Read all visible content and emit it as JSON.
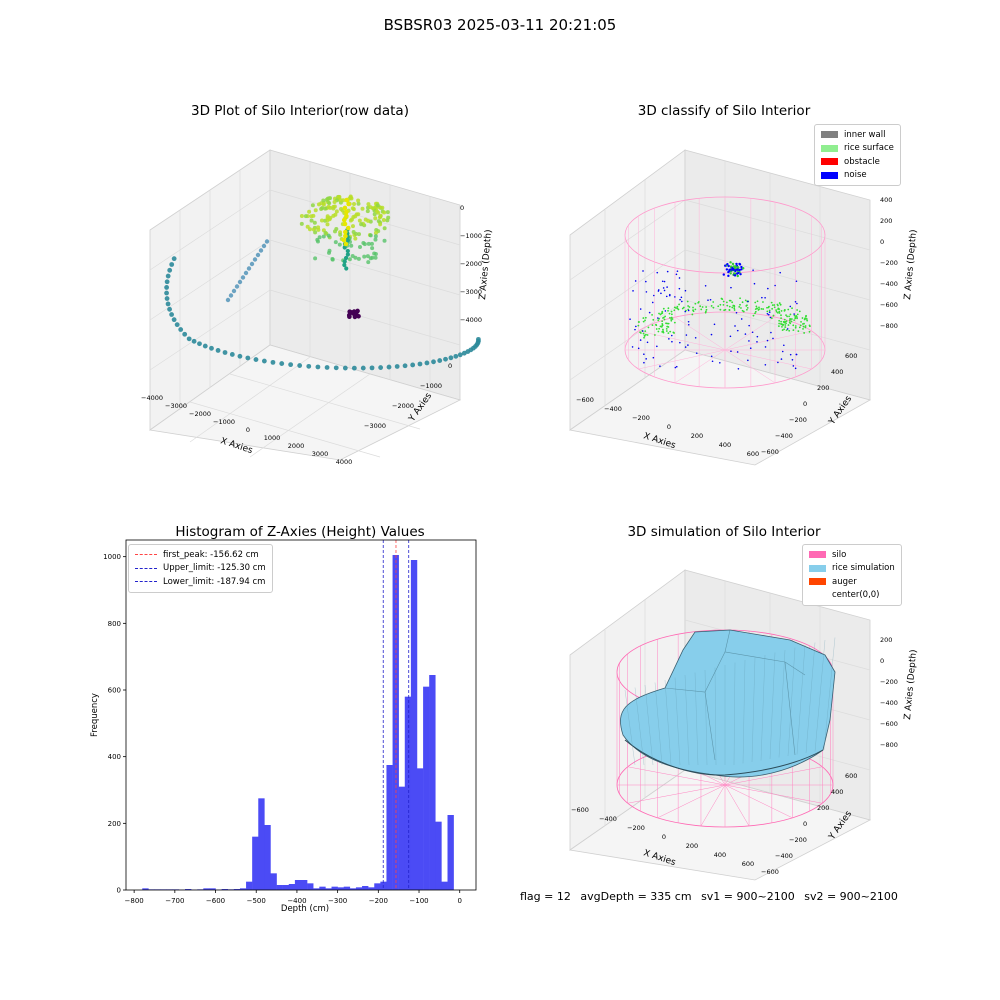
{
  "suptitle": "BSBSR03 2025-03-11 20:21:05",
  "footer": {
    "flag": "flag = 12",
    "avg_depth": "avgDepth = 335 cm",
    "sv1": "sv1 = 900~2100",
    "sv2": "sv2 = 900~2100"
  },
  "chart_data": [
    {
      "type": "scatter",
      "title": "3D Plot of Silo Interior(row data)",
      "xlabel": "X Axies",
      "ylabel": "Y Axies",
      "zlabel": "Z Axies (Depth)",
      "x_ticks": [
        "−4000",
        "−3000",
        "−2000",
        "−1000",
        "0",
        "1000",
        "2000",
        "3000",
        "4000"
      ],
      "y_ticks": [
        "0",
        "−1000",
        "−2000",
        "−3000"
      ],
      "z_ticks": [
        "0",
        "−1000",
        "−2000",
        "−3000",
        "−4000"
      ],
      "colors": {
        "arc": "#2c8a9a",
        "top": "#b8de29",
        "mid": "#57c36a",
        "low": "#440154"
      }
    },
    {
      "type": "scatter",
      "title": "3D classify of Silo Interior",
      "xlabel": "X Axies",
      "ylabel": "Y Axies",
      "zlabel": "Z Axies (Depth)",
      "x_ticks": [
        "−600",
        "−400",
        "−200",
        "0",
        "200",
        "400",
        "600"
      ],
      "y_ticks": [
        "600",
        "400",
        "200",
        "0",
        "−200",
        "−400",
        "−600"
      ],
      "z_ticks": [
        "400",
        "200",
        "0",
        "−200",
        "−400",
        "−600",
        "−800"
      ],
      "legend": [
        {
          "label": "inner wall",
          "color": "#808080"
        },
        {
          "label": "rice surface",
          "color": "#90ee90"
        },
        {
          "label": "obstacle",
          "color": "#ff0000"
        },
        {
          "label": "noise",
          "color": "#0000ff"
        }
      ]
    },
    {
      "type": "bar",
      "title": "Histogram of Z-Axies (Height) Values",
      "xlabel": "Depth (cm)",
      "ylabel": "Frequency",
      "xlim": [
        -820,
        40
      ],
      "ylim": [
        0,
        1050
      ],
      "x_ticks": [
        -800,
        -700,
        -600,
        -500,
        -400,
        -300,
        -200,
        -100,
        0
      ],
      "x_tick_labels": [
        "−800",
        "−700",
        "−600",
        "−500",
        "−400",
        "−300",
        "−200",
        "−100",
        "0"
      ],
      "y_ticks": [
        0,
        200,
        400,
        600,
        800,
        1000
      ],
      "bin_width": 15.6,
      "bins": [
        [
          -780,
          5
        ],
        [
          -765,
          2
        ],
        [
          -750,
          2
        ],
        [
          -735,
          2
        ],
        [
          -720,
          2
        ],
        [
          -705,
          2
        ],
        [
          -690,
          1
        ],
        [
          -675,
          3
        ],
        [
          -660,
          1
        ],
        [
          -645,
          2
        ],
        [
          -630,
          5
        ],
        [
          -615,
          5
        ],
        [
          -600,
          1
        ],
        [
          -585,
          3
        ],
        [
          -570,
          2
        ],
        [
          -555,
          3
        ],
        [
          -540,
          5
        ],
        [
          -525,
          25
        ],
        [
          -510,
          160
        ],
        [
          -495,
          275
        ],
        [
          -480,
          195
        ],
        [
          -465,
          50
        ],
        [
          -450,
          15
        ],
        [
          -435,
          15
        ],
        [
          -420,
          18
        ],
        [
          -405,
          30
        ],
        [
          -390,
          30
        ],
        [
          -375,
          20
        ],
        [
          -360,
          5
        ],
        [
          -345,
          10
        ],
        [
          -330,
          5
        ],
        [
          -315,
          10
        ],
        [
          -300,
          8
        ],
        [
          -285,
          10
        ],
        [
          -270,
          5
        ],
        [
          -255,
          8
        ],
        [
          -240,
          12
        ],
        [
          -225,
          8
        ],
        [
          -210,
          20
        ],
        [
          -195,
          25
        ],
        [
          -180,
          375
        ],
        [
          -165,
          1005
        ],
        [
          -150,
          310
        ],
        [
          -135,
          580
        ],
        [
          -120,
          990
        ],
        [
          -105,
          365
        ],
        [
          -90,
          610
        ],
        [
          -75,
          645
        ],
        [
          -60,
          205
        ],
        [
          -45,
          25
        ],
        [
          -30,
          225
        ]
      ],
      "bar_color": "#4b4bf5",
      "vlines": [
        {
          "label": "first_peak: -156.62 cm",
          "x": -156.62,
          "color": "#ff4444"
        },
        {
          "label": "Upper_limit: -125.30 cm",
          "x": -125.3,
          "color": "#2222cc"
        },
        {
          "label": "Lower_limit: -187.94 cm",
          "x": -187.94,
          "color": "#2222cc"
        }
      ]
    },
    {
      "type": "area",
      "title": "3D simulation of Silo Interior",
      "xlabel": "X Axies",
      "ylabel": "Y Axies",
      "zlabel": "Z Axies (Depth)",
      "x_ticks": [
        "−600",
        "−400",
        "−200",
        "0",
        "200",
        "400",
        "600"
      ],
      "y_ticks": [
        "600",
        "400",
        "200",
        "0",
        "−200",
        "−400",
        "−600"
      ],
      "z_ticks": [
        "200",
        "0",
        "−200",
        "−400",
        "−600",
        "−800"
      ],
      "legend": [
        {
          "label": "silo",
          "color": "#ff69b4"
        },
        {
          "label": "rice simulation",
          "color": "#87ceeb"
        },
        {
          "label": "auger",
          "color": "#ff4500"
        },
        {
          "label": "center(0,0)",
          "color": ""
        }
      ]
    }
  ]
}
